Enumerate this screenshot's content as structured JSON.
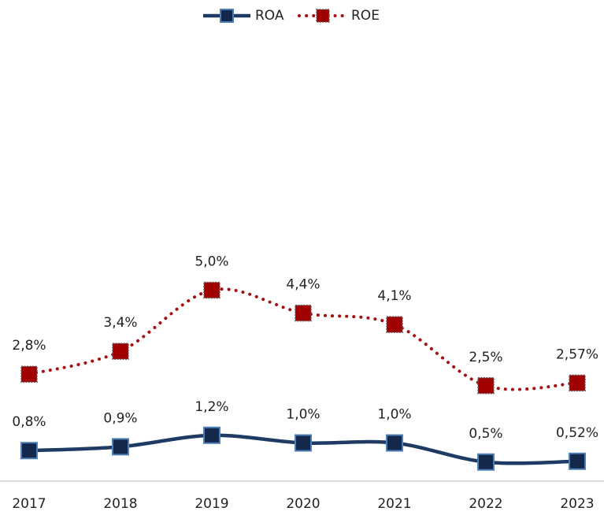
{
  "chart_data": {
    "type": "line",
    "categories": [
      "2017",
      "2018",
      "2019",
      "2020",
      "2021",
      "2022",
      "2023"
    ],
    "series": [
      {
        "name": "ROA",
        "color": "#1f3b63",
        "marker_color": "#14284b",
        "dashed": false,
        "values": [
          0.8,
          0.9,
          1.2,
          1.0,
          1.0,
          0.5,
          0.52
        ],
        "value_labels": [
          "0,8%",
          "0,9%",
          "1,2%",
          "1,0%",
          "1,0%",
          "0,5%",
          "0,52%"
        ]
      },
      {
        "name": "ROE",
        "color": "#a50f0f",
        "marker_color": "#a00000",
        "dashed": true,
        "values": [
          2.8,
          3.4,
          5.0,
          4.4,
          4.1,
          2.5,
          2.57
        ],
        "value_labels": [
          "2,8%",
          "3,4%",
          "5,0%",
          "4,4%",
          "4,1%",
          "2,5%",
          "2,57%"
        ]
      }
    ],
    "ylim": [
      0,
      12
    ],
    "legend": "top"
  }
}
